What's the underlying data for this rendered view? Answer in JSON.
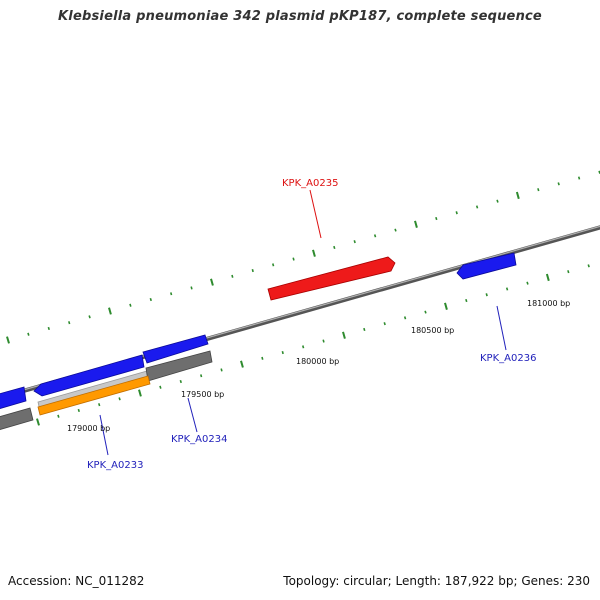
{
  "title": "Klebsiella pneumoniae 342 plasmid pKP187, complete sequence",
  "footer": {
    "accession": "Accession: NC_011282",
    "summary": "Topology: circular; Length: 187,922 bp; Genes: 230"
  },
  "colors": {
    "backbone": "#8a8a8a",
    "tick": "#2e8b2e",
    "forward_gene": "#1a1aee",
    "highlight_gene": "#ee1a1a",
    "orange_feature": "#ff9900",
    "gray_feature": "#777777",
    "light_gray_feature": "#c8c8c8",
    "label_blue": "#2222bb",
    "label_red": "#dd1111"
  },
  "ruler_labels": [
    {
      "text": "179000 bp"
    },
    {
      "text": "179500 bp"
    },
    {
      "text": "180000 bp"
    },
    {
      "text": "180500 bp"
    },
    {
      "text": "181000 bp"
    }
  ],
  "genes": [
    {
      "name": "KPK_A0235",
      "strand": "forward",
      "color_key": "highlight_gene"
    },
    {
      "name": "KPK_A0236",
      "strand": "reverse",
      "color_key": "forward_gene"
    },
    {
      "name": "KPK_A0234",
      "strand": "forward",
      "color_key": "forward_gene"
    },
    {
      "name": "KPK_A0233",
      "strand": "reverse",
      "color_key": "forward_gene"
    }
  ]
}
